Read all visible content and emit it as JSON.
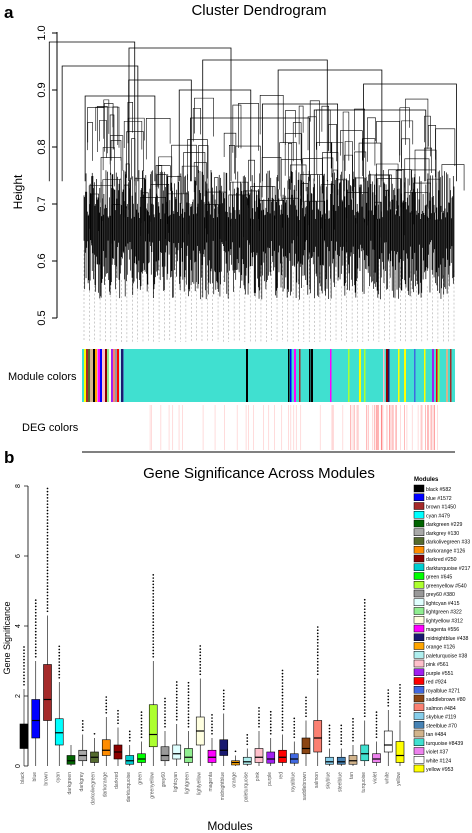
{
  "panel_a": {
    "letter": "a",
    "title": "Cluster Dendrogram",
    "ylabel": "Height",
    "yticks": [
      "0.5",
      "0.6",
      "0.7",
      "0.8",
      "0.9",
      "1.0"
    ],
    "module_colors_label": "Module colors",
    "deg_colors_label": "DEG colors"
  },
  "panel_b": {
    "letter": "b"
  },
  "chart_data": [
    {
      "type": "dendrogram",
      "title": "Cluster Dendrogram",
      "ylabel": "Height",
      "ylim": [
        0.45,
        1.0
      ],
      "row_labels": [
        "Module colors",
        "DEG colors"
      ]
    },
    {
      "type": "boxplot",
      "title": "Gene Significance Across Modules",
      "xlabel": "Modules",
      "ylabel": "Gene Significance",
      "ylim": [
        0,
        8
      ],
      "yticks": [
        0,
        2,
        4,
        6,
        8
      ],
      "legend_title": "Modules",
      "legend_position": "right",
      "categories": [
        "black",
        "blue",
        "brown",
        "cyan",
        "darkgreen",
        "darkgrey",
        "darkolivegreen",
        "darkorange",
        "darkred",
        "darkturquoise",
        "green",
        "greenyellow",
        "grey60",
        "lightcyan",
        "lightgreen",
        "lightyellow",
        "magenta",
        "midnightblue",
        "orange",
        "paleturquoise",
        "pink",
        "purple",
        "red",
        "royalblue",
        "saddlebrown",
        "salmon",
        "skyblue",
        "steelblue",
        "tan",
        "turquoise",
        "violet",
        "white",
        "yellow"
      ],
      "legend": [
        "black #582",
        "blue #1572",
        "brown #1450",
        "cyan #479",
        "darkgreen #229",
        "darkgrey #130",
        "darkolivegreen #33",
        "darkorange #126",
        "darkred #250",
        "darkturquoise #217",
        "green #645",
        "greenyellow #540",
        "grey60 #380",
        "lightcyan #415",
        "lightgreen #322",
        "lightyellow #312",
        "magenta #556",
        "midnightblue #438",
        "orange #126",
        "paleturquoise #38",
        "pink #561",
        "purple #551",
        "red #924",
        "royalblue #271",
        "saddlebrown #80",
        "salmon #484",
        "skyblue #119",
        "steelblue #70",
        "tan #484",
        "turquoise #8439",
        "violet #37",
        "white #124",
        "yellow #953"
      ],
      "colors": [
        "#000000",
        "#0000ff",
        "#a52a2a",
        "#00ffff",
        "#006400",
        "#a9a9a9",
        "#556b2f",
        "#ff8c00",
        "#8b0000",
        "#00ced1",
        "#00ff00",
        "#adff2f",
        "#999999",
        "#e0ffff",
        "#90ee90",
        "#ffffe0",
        "#ff00ff",
        "#191970",
        "#ffa500",
        "#afeeee",
        "#ffc0cb",
        "#a020f0",
        "#ff0000",
        "#4169e1",
        "#8b4513",
        "#fa8072",
        "#87ceeb",
        "#4682b4",
        "#d2b48c",
        "#40e0d0",
        "#ee82ee",
        "#ffffff",
        "#ffff00"
      ],
      "series": [
        {
          "min": [
            0,
            0,
            0,
            0,
            0,
            0,
            0,
            0,
            0,
            0,
            0,
            0,
            0,
            0,
            0,
            0,
            0,
            0,
            0,
            0,
            0,
            0,
            0,
            0,
            0,
            0,
            0,
            0,
            0,
            0,
            0,
            0,
            0
          ],
          "q1": [
            0.5,
            0.8,
            1.3,
            0.6,
            0.05,
            0.15,
            0.1,
            0.3,
            0.2,
            0.05,
            0.1,
            0.55,
            0.15,
            0.2,
            0.1,
            0.6,
            0.1,
            0.3,
            0.03,
            0.05,
            0.1,
            0.08,
            0.1,
            0.08,
            0.35,
            0.4,
            0.05,
            0.05,
            0.05,
            0.15,
            0.1,
            0.4,
            0.1
          ],
          "median": [
            0.8,
            1.3,
            1.9,
            0.95,
            0.15,
            0.3,
            0.25,
            0.45,
            0.4,
            0.15,
            0.2,
            0.9,
            0.3,
            0.35,
            0.25,
            1.0,
            0.25,
            0.45,
            0.1,
            0.12,
            0.25,
            0.2,
            0.25,
            0.2,
            0.5,
            0.8,
            0.12,
            0.12,
            0.15,
            0.35,
            0.2,
            0.6,
            0.3
          ],
          "q3": [
            1.2,
            1.9,
            2.9,
            1.35,
            0.3,
            0.45,
            0.4,
            0.75,
            0.6,
            0.3,
            0.35,
            1.75,
            0.55,
            0.6,
            0.5,
            1.4,
            0.45,
            0.75,
            0.15,
            0.25,
            0.5,
            0.4,
            0.45,
            0.35,
            0.8,
            1.3,
            0.25,
            0.25,
            0.3,
            0.6,
            0.35,
            1.0,
            0.7
          ],
          "max": [
            2.2,
            3.0,
            4.3,
            2.4,
            0.6,
            0.9,
            0.8,
            1.4,
            1.1,
            0.6,
            0.7,
            3.0,
            1.0,
            1.2,
            1.0,
            2.5,
            0.8,
            1.5,
            0.3,
            0.5,
            1.0,
            0.8,
            0.9,
            0.7,
            1.3,
            2.5,
            0.5,
            0.5,
            0.6,
            1.3,
            0.7,
            1.6,
            1.3
          ],
          "outlier_max": [
            3.4,
            4.8,
            8.0,
            3.5,
            0.7,
            1.3,
            1.0,
            2.0,
            1.6,
            1.0,
            1.6,
            5.5,
            2.0,
            2.4,
            2.4,
            3.5,
            1.5,
            2.2,
            0.5,
            0.9,
            1.7,
            1.6,
            2.8,
            1.4,
            2.0,
            4.0,
            1.2,
            1.2,
            1.4,
            4.8,
            1.6,
            2.2,
            2.4
          ]
        }
      ]
    }
  ]
}
